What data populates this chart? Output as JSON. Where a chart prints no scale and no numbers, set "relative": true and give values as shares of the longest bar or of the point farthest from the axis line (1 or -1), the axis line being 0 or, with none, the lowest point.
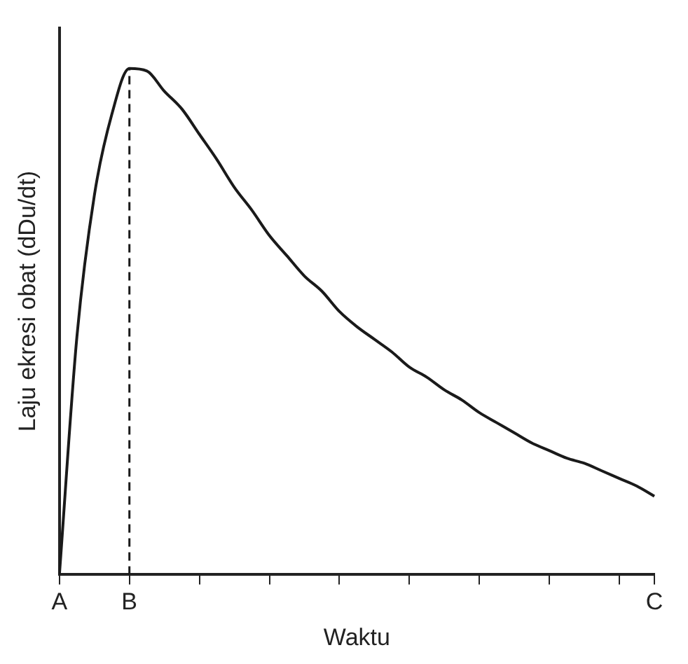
{
  "chart_data": {
    "type": "line",
    "relative": true,
    "xlabel": "Waktu",
    "ylabel": "Laju ekresi obat (dDu/dt)",
    "color": "#1a1a1a",
    "marker": "none",
    "line_style": "solid",
    "grid": false,
    "legend": false,
    "categories": [
      "A",
      null,
      null,
      null,
      "B",
      null,
      null,
      null,
      null,
      null,
      null,
      null,
      null,
      null,
      null,
      null,
      null,
      null,
      null,
      null,
      null,
      null,
      null,
      null,
      null,
      null,
      null,
      null,
      null,
      null,
      null,
      null,
      null,
      null,
      "C"
    ],
    "values": [
      0,
      0.47,
      0.75,
      0.91,
      1,
      0.995,
      0.955,
      0.92,
      0.87,
      0.82,
      0.765,
      0.72,
      0.67,
      0.63,
      0.59,
      0.56,
      0.52,
      0.49,
      0.465,
      0.44,
      0.41,
      0.39,
      0.365,
      0.345,
      0.32,
      0.3,
      0.28,
      0.26,
      0.245,
      0.23,
      0.22,
      0.205,
      0.19,
      0.175,
      0.155
    ],
    "ref_lines": [
      {
        "axis": "x",
        "value": "B",
        "line_style": "dashed",
        "color": "#1a1a1a"
      }
    ]
  }
}
